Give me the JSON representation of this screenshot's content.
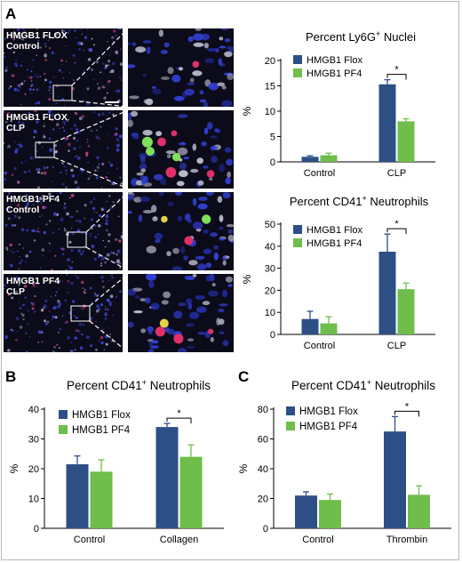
{
  "panel_labels": {
    "a": "A",
    "b": "B",
    "c": "C"
  },
  "micrographs": [
    {
      "label_line1": "HMGB1 FLOX",
      "label_line2": "Control"
    },
    {
      "label_line1": "HMGB1 FLOX",
      "label_line2": "CLP"
    },
    {
      "label_line1": "HMGB1 PF4",
      "label_line2": "Control"
    },
    {
      "label_line1": "HMGB1 PF4",
      "label_line2": "CLP"
    }
  ],
  "colors": {
    "flox": "#2e4f86",
    "pf4": "#6fbd4a",
    "error": "#2e4f86"
  },
  "chart_data": [
    {
      "id": "a1",
      "type": "bar",
      "title": "Percent Ly6G",
      "title_sup": "+",
      "title_suffix": " Nuclei",
      "ylabel": "%",
      "categories": [
        "Control",
        "CLP"
      ],
      "ylim": [
        0,
        20
      ],
      "yticks": [
        0,
        5,
        10,
        15,
        20
      ],
      "series": [
        {
          "name": "HMGB1 Flox",
          "values": [
            1.0,
            15.3
          ],
          "errors": [
            0.2,
            0.9
          ]
        },
        {
          "name": "HMGB1 PF4",
          "values": [
            1.3,
            8.0
          ],
          "errors": [
            0.4,
            0.5
          ]
        }
      ],
      "significance": {
        "category": 1,
        "label": "*"
      }
    },
    {
      "id": "a2",
      "type": "bar",
      "title": "Percent CD41",
      "title_sup": "+",
      "title_suffix": " Neutrophils",
      "ylabel": "%",
      "categories": [
        "Control",
        "CLP"
      ],
      "ylim": [
        0,
        50
      ],
      "yticks": [
        0,
        10,
        20,
        30,
        40,
        50
      ],
      "series": [
        {
          "name": "HMGB1 Flox",
          "values": [
            7.0,
            37.5
          ],
          "errors": [
            3.5,
            8.0
          ]
        },
        {
          "name": "HMGB1 PF4",
          "values": [
            5.0,
            20.5
          ],
          "errors": [
            3.0,
            2.8
          ]
        }
      ],
      "significance": {
        "category": 1,
        "label": "*"
      }
    },
    {
      "id": "b",
      "type": "bar",
      "title": "Percent CD41",
      "title_sup": "+",
      "title_suffix": " Neutrophils",
      "ylabel": "%",
      "categories": [
        "Control",
        "Collagen"
      ],
      "ylim": [
        0,
        40
      ],
      "yticks": [
        0,
        10,
        20,
        30,
        40
      ],
      "series": [
        {
          "name": "HMGB1 Flox",
          "values": [
            21.5,
            34.0
          ],
          "errors": [
            2.8,
            1.2
          ]
        },
        {
          "name": "HMGB1 PF4",
          "values": [
            19.0,
            24.0
          ],
          "errors": [
            4.0,
            4.0
          ]
        }
      ],
      "significance": {
        "category": 1,
        "label": "*"
      }
    },
    {
      "id": "c",
      "type": "bar",
      "title": "Percent CD41",
      "title_sup": "+",
      "title_suffix": " Neutrophils",
      "ylabel": "%",
      "categories": [
        "Control",
        "Thrombin"
      ],
      "ylim": [
        0,
        80
      ],
      "yticks": [
        0,
        20,
        40,
        60,
        80
      ],
      "series": [
        {
          "name": "HMGB1 Flox",
          "values": [
            22.0,
            65.0
          ],
          "errors": [
            2.5,
            10.0
          ]
        },
        {
          "name": "HMGB1 PF4",
          "values": [
            19.0,
            22.5
          ],
          "errors": [
            4.0,
            6.0
          ]
        }
      ],
      "significance": {
        "category": 1,
        "label": "*"
      }
    }
  ]
}
